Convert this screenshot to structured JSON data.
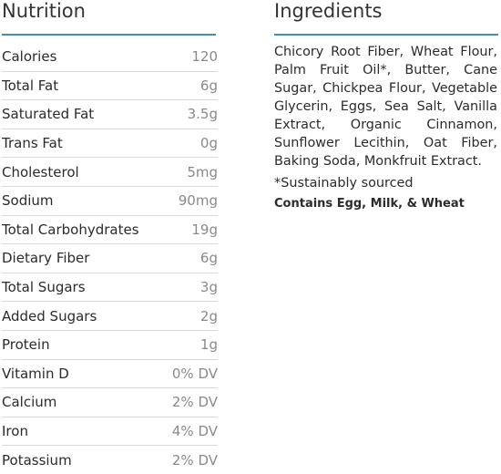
{
  "nutrition": {
    "title": "Nutrition",
    "rows": [
      {
        "label": "Calories",
        "value": "120"
      },
      {
        "label": "Total Fat",
        "value": "6g"
      },
      {
        "label": "Saturated Fat",
        "value": "3.5g"
      },
      {
        "label": "Trans Fat",
        "value": "0g"
      },
      {
        "label": "Cholesterol",
        "value": "5mg"
      },
      {
        "label": "Sodium",
        "value": "90mg"
      },
      {
        "label": "Total Carbohydrates",
        "value": "19g"
      },
      {
        "label": "Dietary Fiber",
        "value": "6g"
      },
      {
        "label": "Total Sugars",
        "value": "3g"
      },
      {
        "label": "Added Sugars",
        "value": "2g"
      },
      {
        "label": "Protein",
        "value": "1g"
      },
      {
        "label": "Vitamin D",
        "value": "0% DV"
      },
      {
        "label": "Calcium",
        "value": "2% DV"
      },
      {
        "label": "Iron",
        "value": "4% DV"
      },
      {
        "label": "Potassium",
        "value": "2% DV"
      }
    ]
  },
  "ingredients": {
    "title": "Ingredients",
    "text": "Chicory Root Fiber, Wheat Flour, Palm Fruit Oil*, Butter, Cane Sugar, Chickpea Flour, Vegetable Glycerin, Eggs, Sea Salt, Vanilla Extract, Organic Cinnamon, Sunflower Lecithin, Oat Fiber, Baking Soda, Monkfruit Extract.",
    "note": "*Sustainably sourced",
    "allergens": "Contains Egg, Milk, & Wheat"
  },
  "colors": {
    "accent_rule": "#3d8fb8",
    "row_divider": "#d9d9d9",
    "value_text": "#8a8a8a"
  }
}
